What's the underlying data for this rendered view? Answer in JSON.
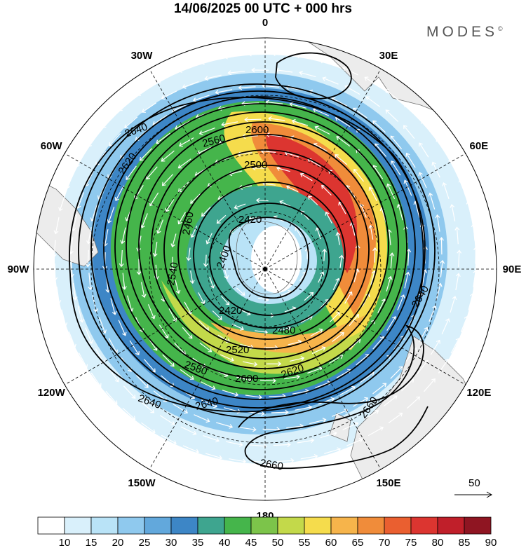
{
  "title": "14/06/2025  00 UTC  + 000 hrs",
  "brand": "MODES",
  "brand_mark": "©",
  "longitudes": [
    {
      "label": "0",
      "deg": 0
    },
    {
      "label": "30E",
      "deg": 30
    },
    {
      "label": "60E",
      "deg": 60
    },
    {
      "label": "90E",
      "deg": 90
    },
    {
      "label": "120E",
      "deg": 120
    },
    {
      "label": "150E",
      "deg": 150
    },
    {
      "label": "180",
      "deg": 180
    },
    {
      "label": "150W",
      "deg": 210
    },
    {
      "label": "120W",
      "deg": 240
    },
    {
      "label": "90W",
      "deg": 270
    },
    {
      "label": "60W",
      "deg": 300
    },
    {
      "label": "30W",
      "deg": 330
    }
  ],
  "contour_labels": [
    "2400",
    "2420",
    "2460",
    "2480",
    "2500",
    "2520",
    "2540",
    "2560",
    "2580",
    "2600",
    "2620",
    "2640",
    "2660"
  ],
  "vector_reference": "50",
  "colorbar": {
    "ticks": [
      "10",
      "15",
      "20",
      "25",
      "30",
      "35",
      "40",
      "45",
      "50",
      "55",
      "60",
      "65",
      "70",
      "75",
      "80",
      "85",
      "90"
    ],
    "colors": [
      "#ffffff",
      "#d9f0fb",
      "#b9e3f7",
      "#8fc9ee",
      "#62a8dc",
      "#3d86c6",
      "#3ea58f",
      "#45b54b",
      "#7cc44a",
      "#c3d94a",
      "#f5dc4c",
      "#f6b44b",
      "#f08c3a",
      "#ea5f30",
      "#dc3530",
      "#c01f2a",
      "#8f1522"
    ]
  },
  "colors": {
    "land": "#ececec",
    "coast": "#707070",
    "vector": "#ffffff",
    "contour": "#000000"
  }
}
